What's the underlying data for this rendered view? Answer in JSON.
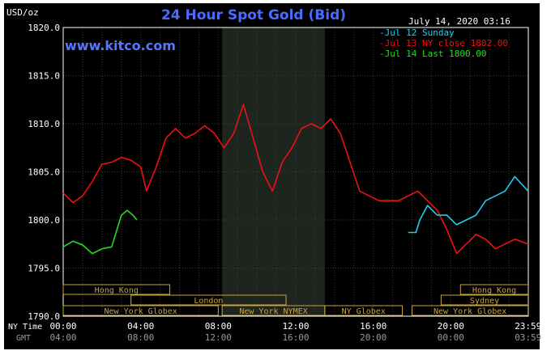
{
  "chart_data": {
    "type": "line",
    "title": "24 Hour Spot Gold (Bid)",
    "ylabel": "USD/oz",
    "date_label": "July 14, 2020 03:16",
    "watermark": "www.kitco.com",
    "ylim": [
      1790,
      1820
    ],
    "yticks": [
      "1820.0",
      "1815.0",
      "1810.0",
      "1805.0",
      "1800.0",
      "1795.0",
      "1790.0"
    ],
    "xticks_ny": [
      "00:00",
      "04:00",
      "08:00",
      "12:00",
      "16:00",
      "20:00",
      "23:59"
    ],
    "xticks_gmt": [
      "04:00",
      "08:00",
      "12:00",
      "16:00",
      "20:00",
      "00:00",
      "03:59"
    ],
    "x_row_labels": [
      "NY Time",
      "GMT"
    ],
    "grid": true,
    "legend_position": "top-right",
    "legend": [
      {
        "label": "Jul 12 Sunday",
        "color": "#22ccee"
      },
      {
        "label": "Jul 13 NY close 1802.00",
        "color": "#ee1111"
      },
      {
        "label": "Jul 14 Last 1800.00",
        "color": "#22dd22"
      }
    ],
    "series": [
      {
        "name": "Jul 13 NY close 1802.00",
        "color": "#ee1111",
        "x": [
          0,
          0.5,
          1,
          1.5,
          2,
          2.5,
          3,
          3.5,
          4,
          4.3,
          4.8,
          5.3,
          5.8,
          6.3,
          6.8,
          7.3,
          7.8,
          8.3,
          8.8,
          9.3,
          9.8,
          10.3,
          10.8,
          11.3,
          11.8,
          12.3,
          12.8,
          13.3,
          13.8,
          14.3,
          14.8,
          15.3,
          15.8,
          16.3,
          16.8,
          17.3,
          17.8,
          18.3,
          18.8,
          19.3,
          19.8,
          20.3,
          20.8,
          21.3,
          21.8,
          22.3,
          22.8,
          23.3,
          23.99
        ],
        "y": [
          1802.8,
          1801.8,
          1802.5,
          1804.0,
          1805.8,
          1806.0,
          1806.5,
          1806.2,
          1805.5,
          1803.0,
          1805.5,
          1808.5,
          1809.5,
          1808.5,
          1809.0,
          1809.8,
          1809.0,
          1807.5,
          1809.0,
          1812.0,
          1808.5,
          1805.0,
          1803.0,
          1806.0,
          1807.5,
          1809.5,
          1810.0,
          1809.5,
          1810.5,
          1809.0,
          1806.0,
          1803.0,
          1802.5,
          1802.0,
          1802.0,
          1802.0,
          1802.5,
          1803.0,
          1802.0,
          1801.0,
          1799.0,
          1796.5,
          1797.5,
          1798.5,
          1798.0,
          1797.0,
          1797.5,
          1798.0,
          1797.5
        ]
      },
      {
        "name": "Jul 12 Sunday",
        "color": "#22ccee",
        "x": [
          17.8,
          18.2,
          18.4,
          18.8,
          19.3,
          19.8,
          20.3,
          20.8,
          21.3,
          21.8,
          22.3,
          22.8,
          23.3,
          23.99
        ],
        "y": [
          1798.7,
          1798.7,
          1800.0,
          1801.5,
          1800.5,
          1800.5,
          1799.5,
          1800.0,
          1800.5,
          1802.0,
          1802.5,
          1803.0,
          1804.5,
          1803.0
        ]
      },
      {
        "name": "Jul 14 Last 1800.00",
        "color": "#22dd22",
        "x": [
          0,
          0.5,
          1.0,
          1.5,
          2.0,
          2.5,
          3.0,
          3.3,
          3.6,
          3.8
        ],
        "y": [
          1797.2,
          1797.8,
          1797.4,
          1796.5,
          1797.0,
          1797.2,
          1800.5,
          1801.0,
          1800.5,
          1800.0
        ]
      }
    ],
    "sessions_row1": [
      {
        "label": "Hong Kong",
        "from": 0,
        "to": 5.5
      },
      {
        "label": "Hong Kong",
        "from": 20.5,
        "to": 24
      }
    ],
    "sessions_row2": [
      {
        "label": "London",
        "from": 3.5,
        "to": 11.5
      },
      {
        "label": "Sydney",
        "from": 19.5,
        "to": 24
      }
    ],
    "sessions_row3": [
      {
        "label": "New York Globex",
        "from": 0,
        "to": 8
      },
      {
        "label": "New York NYMEX",
        "from": 8.2,
        "to": 13.5
      },
      {
        "label": "NY Globex",
        "from": 13.5,
        "to": 17.5
      },
      {
        "label": "New York Globex",
        "from": 18,
        "to": 24
      }
    ],
    "shaded_region": {
      "from": 8.2,
      "to": 13.5
    }
  }
}
